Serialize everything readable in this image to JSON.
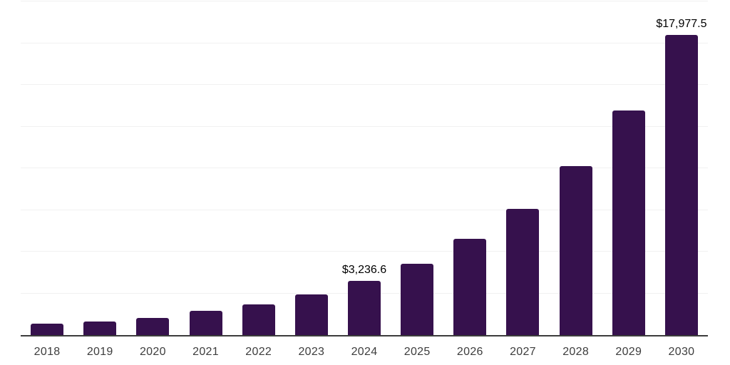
{
  "chart_data": {
    "type": "bar",
    "title": "",
    "xlabel": "",
    "ylabel": "",
    "categories": [
      "2018",
      "2019",
      "2020",
      "2021",
      "2022",
      "2023",
      "2024",
      "2025",
      "2026",
      "2027",
      "2028",
      "2029",
      "2030"
    ],
    "values": [
      680,
      810,
      1010,
      1460,
      1850,
      2450,
      3236.6,
      4280,
      5780,
      7580,
      10110,
      13470,
      17977.5
    ],
    "data_labels": [
      "",
      "",
      "",
      "",
      "",
      "",
      "$3,236.6",
      "",
      "",
      "",
      "",
      "",
      "$17,977.5"
    ],
    "ylim": [
      0,
      20000
    ],
    "gridline_step": 2500,
    "grid": true,
    "legend_position": "none",
    "colors": {
      "bar": "#36114D",
      "grid": "#F1F1F1",
      "axis_line": "#3C3C3C",
      "tick_label": "#3D3D3D",
      "data_label": "#000000",
      "background": "#FFFFFF"
    }
  }
}
